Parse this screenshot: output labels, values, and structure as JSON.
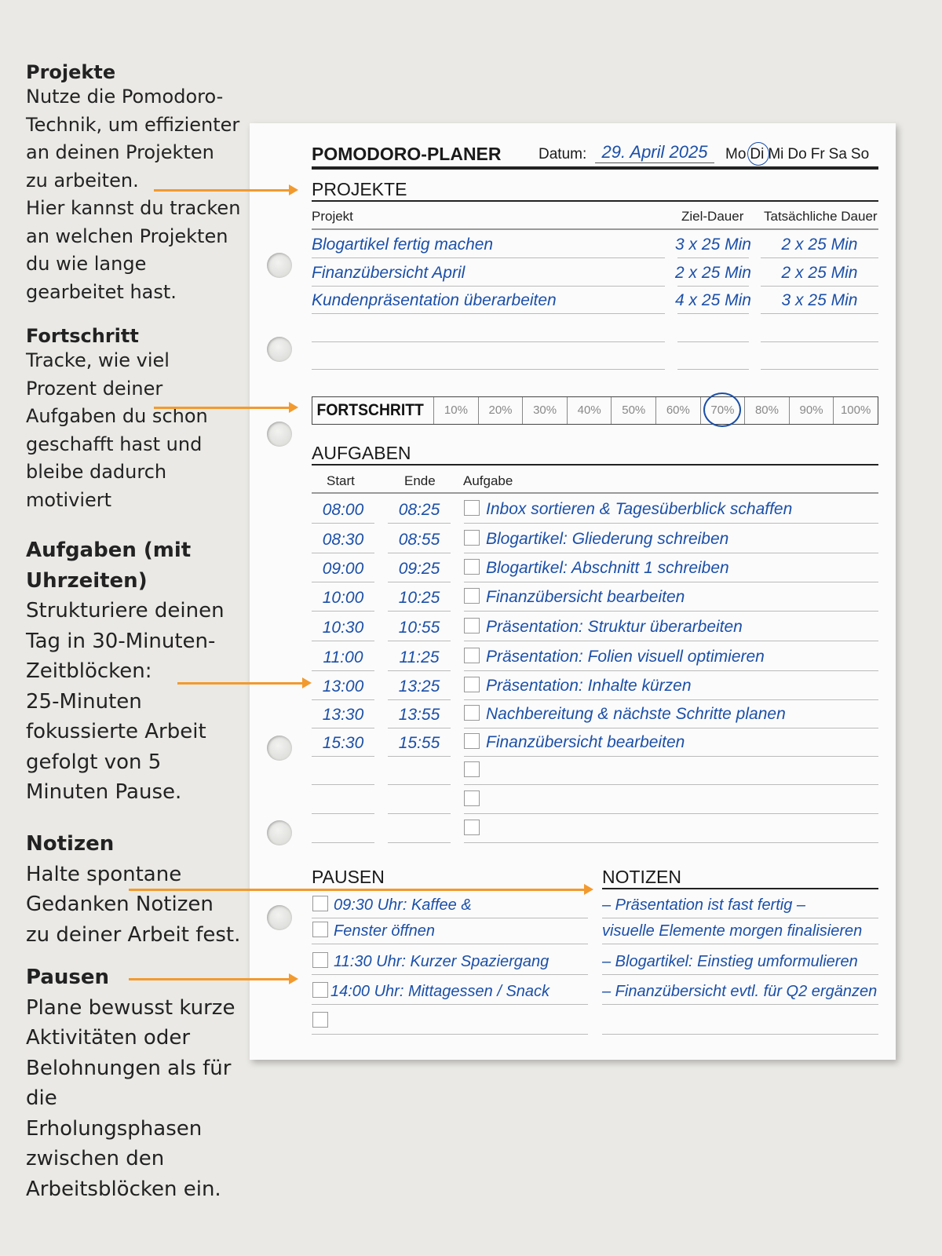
{
  "sidebar": [
    {
      "title": "Projekte",
      "text": "Nutze die Pomodoro-\nTechnik, um effizienter\nan deinen Projekten\nzu arbeiten.\nHier kannst du tracken\nan welchen Projekten\ndu wie lange\ngearbeitet hast."
    },
    {
      "title": "Fortschritt",
      "text": "Tracke, wie viel\nProzent deiner\nAufgaben du schon\ngeschafft hast und\nbleibe dadurch\nmotiviert"
    },
    {
      "title": "Aufgaben (mit\nUhrzeiten)",
      "text": "Strukturiere deinen\nTag in 30-Minuten-\nZeitblöcken:\n25-Minuten\nfokussierte Arbeit\ngefolgt von 5\nMinuten Pause."
    },
    {
      "title": "Notizen",
      "text": "Halte spontane\nGedanken Notizen\nzu deiner Arbeit fest."
    },
    {
      "title": "Pausen",
      "text": "Plane bewusst kurze\nAktivitäten oder\nBelohnungen als für\ndie\nErholungsphasen\nzwischen den\nArbeitsblöcken ein."
    }
  ],
  "colors": {
    "accent": "#f29a2e",
    "ink": "#1b4fa8"
  },
  "header": {
    "title": "POMODORO-PLANER",
    "date_label": "Datum:",
    "date": "29. April 2025",
    "days": [
      "Mo",
      "Di",
      "Mi",
      "Do",
      "Fr",
      "Sa",
      "So"
    ],
    "selected_day": "Di"
  },
  "projects": {
    "title": "PROJEKTE",
    "col_project": "Projekt",
    "col_target": "Ziel-Dauer",
    "col_actual": "Tatsächliche Dauer",
    "rows": [
      [
        "Blogartikel fertig machen",
        "3 x 25 Min",
        "2 x 25 Min"
      ],
      [
        "Finanzübersicht April",
        "2 x 25 Min",
        "2 x 25 Min"
      ],
      [
        "Kundenpräsentation überarbeiten",
        "4 x 25 Min",
        "3 x 25 Min"
      ],
      [
        "",
        "",
        ""
      ],
      [
        "",
        "",
        ""
      ]
    ]
  },
  "progress": {
    "label": "FORTSCHRITT",
    "steps": [
      "10%",
      "20%",
      "30%",
      "40%",
      "50%",
      "60%",
      "70%",
      "80%",
      "90%",
      "100%"
    ],
    "value_percent": 70
  },
  "tasks": {
    "title": "AUFGABEN",
    "col_start": "Start",
    "col_end": "Ende",
    "col_task": "Aufgabe",
    "rows": [
      [
        "08:00",
        "08:25",
        "Inbox sortieren & Tagesüberblick schaffen"
      ],
      [
        "08:30",
        "08:55",
        "Blogartikel: Gliederung schreiben"
      ],
      [
        "09:00",
        "09:25",
        "Blogartikel: Abschnitt 1 schreiben"
      ],
      [
        "10:00",
        "10:25",
        "Finanzübersicht bearbeiten"
      ],
      [
        "10:30",
        "10:55",
        "Präsentation: Struktur überarbeiten"
      ],
      [
        "11:00",
        "11:25",
        "Präsentation: Folien visuell optimieren"
      ],
      [
        "13:00",
        "13:25",
        "Präsentation: Inhalte kürzen"
      ],
      [
        "13:30",
        "13:55",
        "Nachbereitung & nächste Schritte planen"
      ],
      [
        "15:30",
        "15:55",
        "Finanzübersicht bearbeiten"
      ],
      [
        "",
        "",
        ""
      ],
      [
        "",
        "",
        ""
      ],
      [
        "",
        "",
        ""
      ]
    ]
  },
  "breaks": {
    "title": "PAUSEN",
    "rows": [
      "09:30 Uhr: Kaffee &",
      "Fenster öffnen",
      "11:30 Uhr: Kurzer Spaziergang",
      "14:00 Uhr: Mittagessen  / Snack",
      ""
    ]
  },
  "notes": {
    "title": "NOTIZEN",
    "rows": [
      "– Präsentation ist fast fertig –",
      "visuelle Elemente morgen finalisieren",
      "– Blogartikel: Einstieg umformulieren",
      "– Finanzübersicht evtl. für Q2 ergänzen"
    ]
  }
}
